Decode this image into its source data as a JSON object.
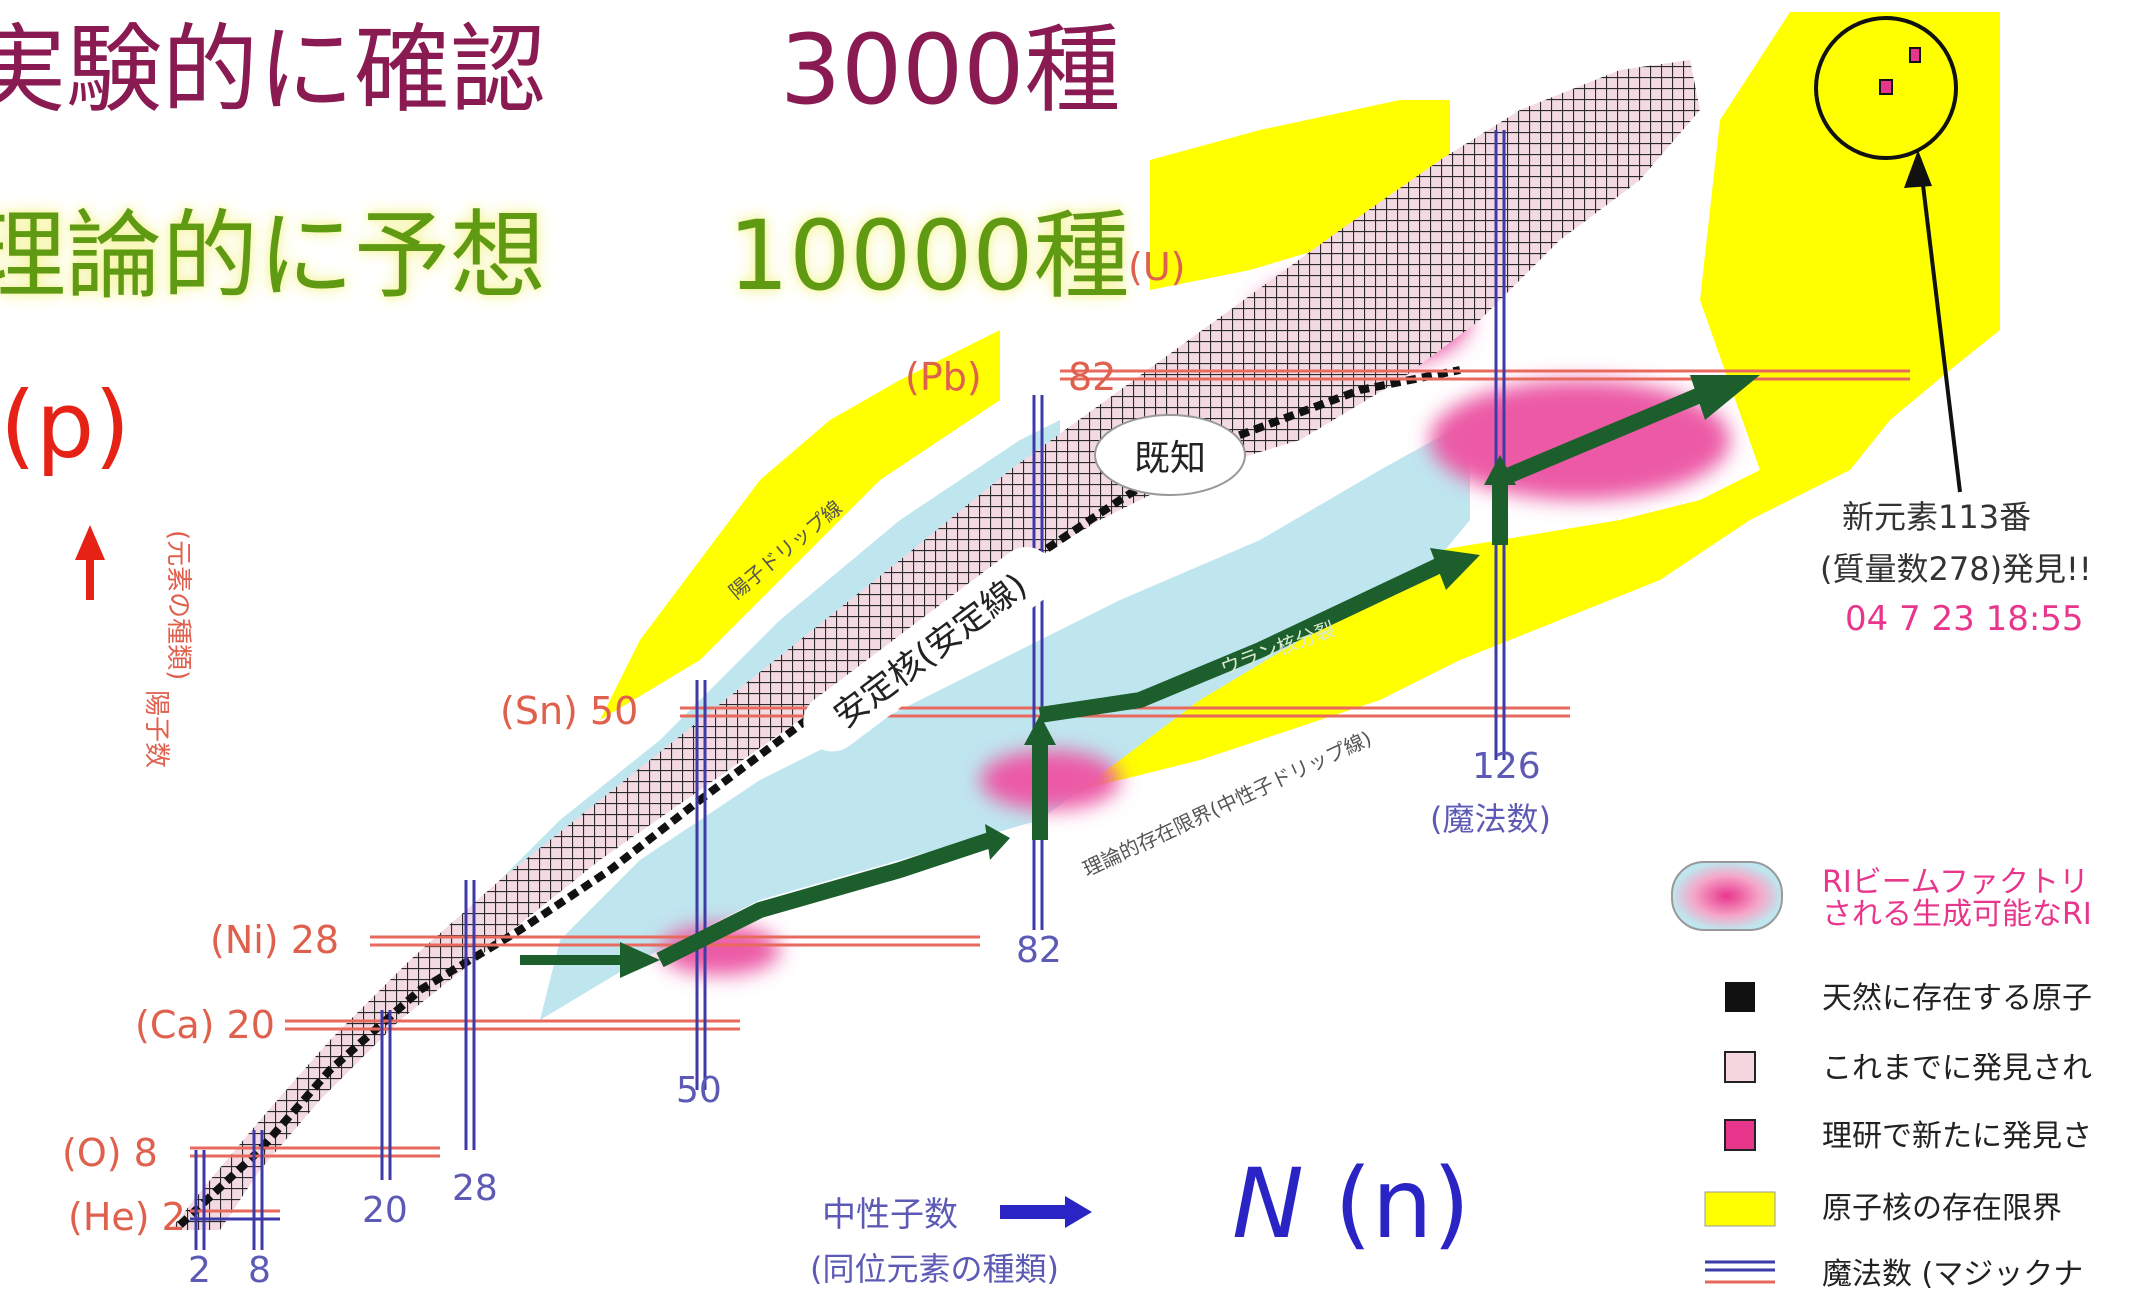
{
  "header": {
    "line1": "実験的に確認",
    "line1_count": "3000種",
    "line2": "理論的に予想",
    "line2_count": "10000種"
  },
  "axes": {
    "z_axis_label": "(p)",
    "z_axis_side_text_1": "陽子数",
    "z_axis_side_text_2": "(元素の種類)",
    "n_axis_label_italic": "N",
    "n_axis_label": "(n)",
    "n_axis_caption_1": "中性子数",
    "n_axis_caption_2": "(同位元素の種類)"
  },
  "elements": {
    "he": "(He) 2",
    "o": "(O) 8",
    "ca": "(Ca) 20",
    "ni": "(Ni) 28",
    "sn": "(Sn) 50",
    "pb": "(Pb)",
    "pb_z": "82",
    "u": "(U)"
  },
  "neutron_ticks": {
    "n2": "2",
    "n8": "8",
    "n20": "20",
    "n28": "28",
    "n50": "50",
    "n82": "82",
    "n126": "126",
    "magic": "(魔法数)"
  },
  "regions": {
    "known": "既知",
    "stable": "安定核(安定線)",
    "proton_drip": "陽子ドリップ線",
    "neutron_drip": "理論的存在限界(中性子ドリップ線)",
    "uranium_fission": "ウラン核分裂"
  },
  "annotation": {
    "new_element": "新元素113番",
    "mass_number": "(質量数278)発見!!",
    "date": "04 7 23 18:55"
  },
  "legend": {
    "ri_beam_1": "RIビームファクトリ",
    "ri_beam_2": "される生成可能なRI",
    "natural": "天然に存在する原子",
    "discovered": "これまでに発見され",
    "riken": "理研で新たに発見さ",
    "limit": "原子核の存在限界",
    "magic": "魔法数 (マジックナ"
  },
  "colors": {
    "header_red": "#8a1a52",
    "header_green": "#5f9a12",
    "element_label": "#e0604e",
    "magic_blue": "#3e3aa8",
    "limit_yellow": "#ffff00",
    "riken_pink": "#e8368c",
    "neutron_cyan": "#bfe6ef",
    "arrow_green": "#1c5e2c"
  }
}
